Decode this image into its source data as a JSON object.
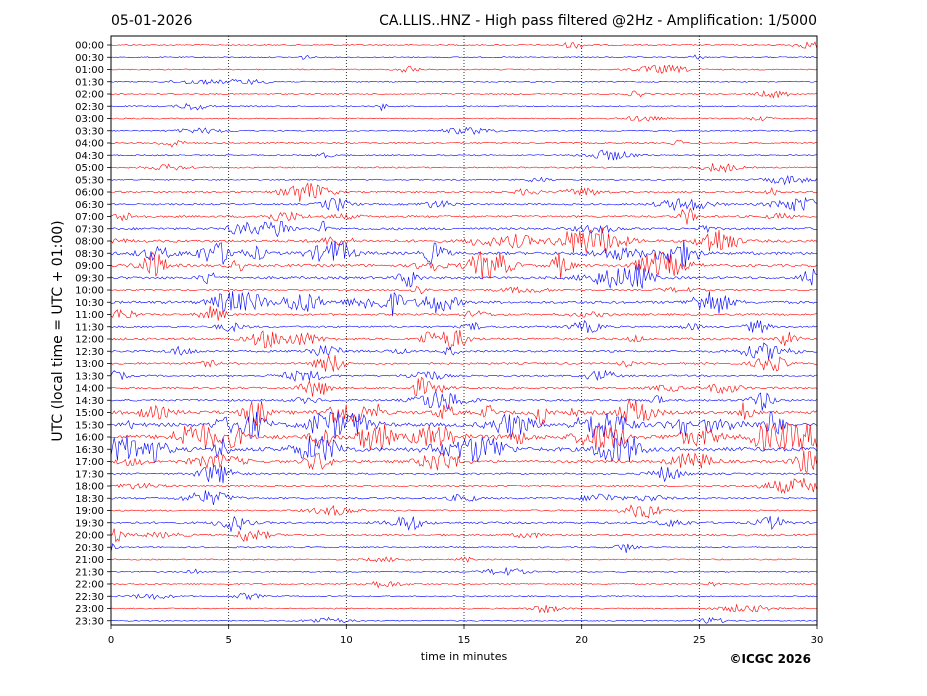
{
  "chart_data": {
    "type": "line",
    "title_left": "05-01-2026",
    "title": "CA.LLIS..HNZ - High pass filtered @2Hz - Amplification: 1/5000",
    "xlabel": "time in minutes",
    "ylabel": "UTC (local time = UTC + 01:00)",
    "xlim": [
      0,
      30
    ],
    "x_ticks": [
      "0",
      "5",
      "10",
      "15",
      "20",
      "25",
      "30"
    ],
    "row_labels": [
      "00:00",
      "00:30",
      "01:00",
      "01:30",
      "02:00",
      "02:30",
      "03:00",
      "03:30",
      "04:00",
      "04:30",
      "05:00",
      "05:30",
      "06:00",
      "06:30",
      "07:00",
      "07:30",
      "08:00",
      "08:30",
      "09:00",
      "09:30",
      "10:00",
      "10:30",
      "11:00",
      "11:30",
      "12:00",
      "12:30",
      "13:00",
      "13:30",
      "14:00",
      "14:30",
      "15:00",
      "15:30",
      "16:00",
      "16:30",
      "17:00",
      "17:30",
      "18:00",
      "18:30",
      "19:00",
      "19:30",
      "20:00",
      "20:30",
      "21:00",
      "21:30",
      "22:00",
      "22:30",
      "23:00",
      "23:30"
    ],
    "row_colors": [
      "#ff0000",
      "#0000ff"
    ],
    "activity": [
      0.5,
      0.5,
      0.5,
      0.5,
      0.5,
      0.5,
      0.5,
      0.6,
      0.8,
      0.7,
      0.8,
      0.7,
      1.5,
      1.2,
      1.8,
      2.2,
      2.6,
      3.0,
      2.6,
      2.4,
      0.9,
      2.6,
      1.6,
      1.5,
      2.0,
      1.8,
      1.6,
      1.2,
      1.7,
      1.8,
      4.0,
      4.2,
      4.5,
      4.6,
      2.4,
      1.2,
      1.0,
      1.4,
      1.0,
      1.8,
      1.5,
      0.8,
      0.6,
      0.6,
      0.6,
      0.6,
      0.5,
      0.5
    ],
    "grid_x": [
      5,
      10,
      15,
      20,
      25
    ],
    "grid_style": "dotted"
  },
  "copyright": "©ICGC 2026"
}
